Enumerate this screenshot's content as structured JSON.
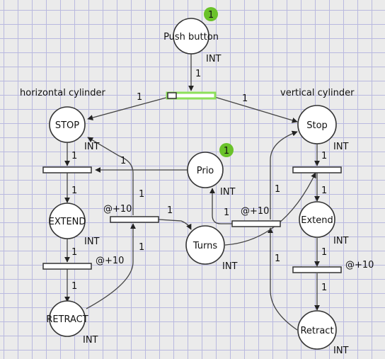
{
  "colors": {
    "token": "#6ac22a",
    "enabled": "#8de05a"
  },
  "places": {
    "push": {
      "name": "Push button",
      "type": "INT",
      "tokens": "1"
    },
    "stop_h": {
      "name": "STOP",
      "type": "INT"
    },
    "extend_h": {
      "name": "EXTEND",
      "type": "INT"
    },
    "retract_h": {
      "name": "RETRACT",
      "type": "INT"
    },
    "prio": {
      "name": "Prio",
      "type": "INT",
      "tokens": "1"
    },
    "turns": {
      "name": "Turns",
      "type": "INT"
    },
    "stop_v": {
      "name": "Stop",
      "type": "INT"
    },
    "extend_v": {
      "name": "Extend",
      "type": "INT"
    },
    "retract_v": {
      "name": "Retract",
      "type": "INT"
    }
  },
  "labels": {
    "horizontal": "horizontal cylinder",
    "vertical": "vertical cylinder"
  },
  "transitions": {
    "t_mid_left": {
      "delay": "@+10"
    },
    "t_ext_h": {
      "delay": "@+10"
    },
    "t_mid_right": {
      "delay": "@+10"
    },
    "t_ext_v": {
      "delay": "@+10"
    }
  },
  "arc_weights": {
    "push_in": "1",
    "to_stop_h": "1",
    "to_stop_v": "1",
    "stop_h_out": "1",
    "to_extend_h": "1",
    "extend_h_out": "1",
    "to_retract_h": "1",
    "retract_h_out": "1",
    "mid_left_to_stop_h": "1",
    "stop_h_t_up": "1",
    "to_turns": "1",
    "stop_v_out": "1",
    "to_extend_v": "1",
    "extend_v_out": "1",
    "to_retract_v": "1",
    "to_prio": "1",
    "retract_v_out": "1",
    "to_stop_v_right": "1"
  }
}
